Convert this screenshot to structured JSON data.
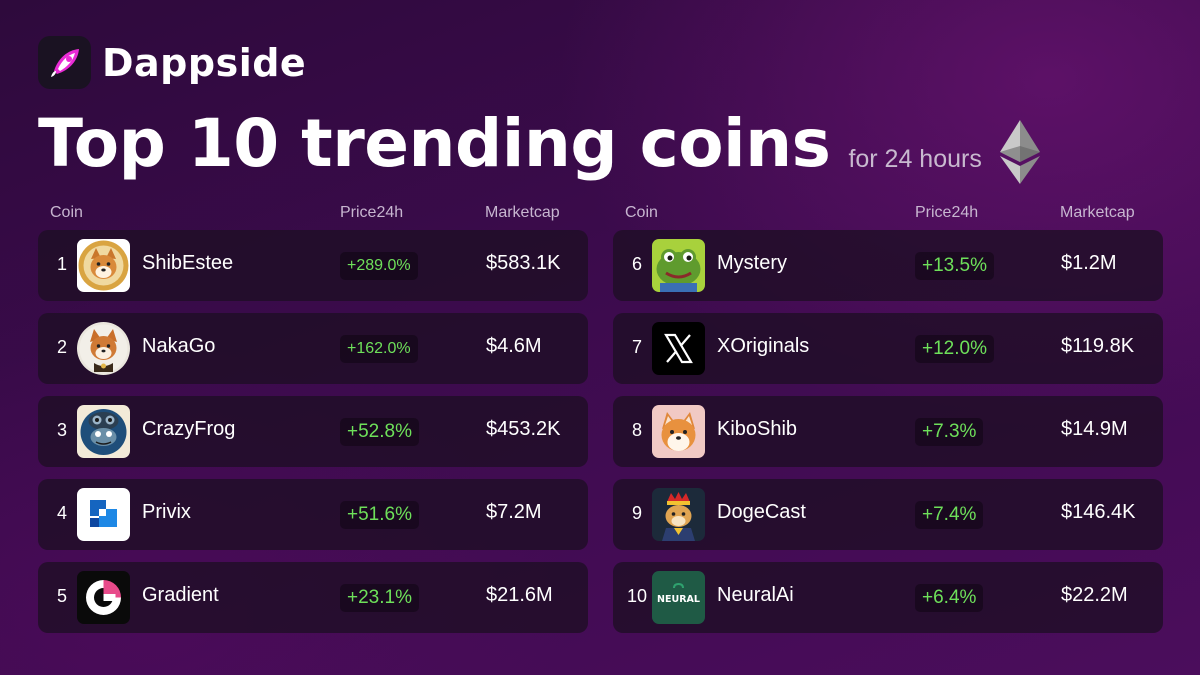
{
  "brand": {
    "name": "Dappside",
    "logo_icon": "rocket-icon"
  },
  "header": {
    "title": "Top 10 trending coins",
    "subtitle": "for 24 hours",
    "chain_icon": "ethereum-icon"
  },
  "columns": {
    "coin": "Coin",
    "price": "Price24h",
    "marketcap": "Marketcap"
  },
  "colors": {
    "positive": "#6ee05a",
    "row_bg": "#1d0e24",
    "accent": "#e92bd5"
  },
  "left_coins": [
    {
      "rank": "1",
      "name": "ShibEstee",
      "change": "+289.0%",
      "marketcap": "$583.1K",
      "icon": "shiba-coin-icon"
    },
    {
      "rank": "2",
      "name": "NakaGo",
      "change": "+162.0%",
      "marketcap": "$4.6M",
      "icon": "shiba-dog-icon"
    },
    {
      "rank": "3",
      "name": "CrazyFrog",
      "change": "+52.8%",
      "marketcap": "$453.2K",
      "icon": "frog-helmet-icon"
    },
    {
      "rank": "4",
      "name": "Privix",
      "change": "+51.6%",
      "marketcap": "$7.2M",
      "icon": "privix-logo-icon"
    },
    {
      "rank": "5",
      "name": "Gradient",
      "change": "+23.1%",
      "marketcap": "$21.6M",
      "icon": "gradient-logo-icon"
    }
  ],
  "right_coins": [
    {
      "rank": "6",
      "name": "Mystery",
      "change": "+13.5%",
      "marketcap": "$1.2M",
      "icon": "pepe-frog-icon"
    },
    {
      "rank": "7",
      "name": "XOriginals",
      "change": "+12.0%",
      "marketcap": "$119.8K",
      "icon": "x-logo-icon"
    },
    {
      "rank": "8",
      "name": "KiboShib",
      "change": "+7.3%",
      "marketcap": "$14.9M",
      "icon": "shiba-face-icon"
    },
    {
      "rank": "9",
      "name": "DogeCast",
      "change": "+7.4%",
      "marketcap": "$146.4K",
      "icon": "doge-king-icon"
    },
    {
      "rank": "10",
      "name": "NeuralAi",
      "change": "+6.4%",
      "marketcap": "$22.2M",
      "icon": "neural-logo-icon",
      "icon_text": "NEURAL"
    }
  ]
}
